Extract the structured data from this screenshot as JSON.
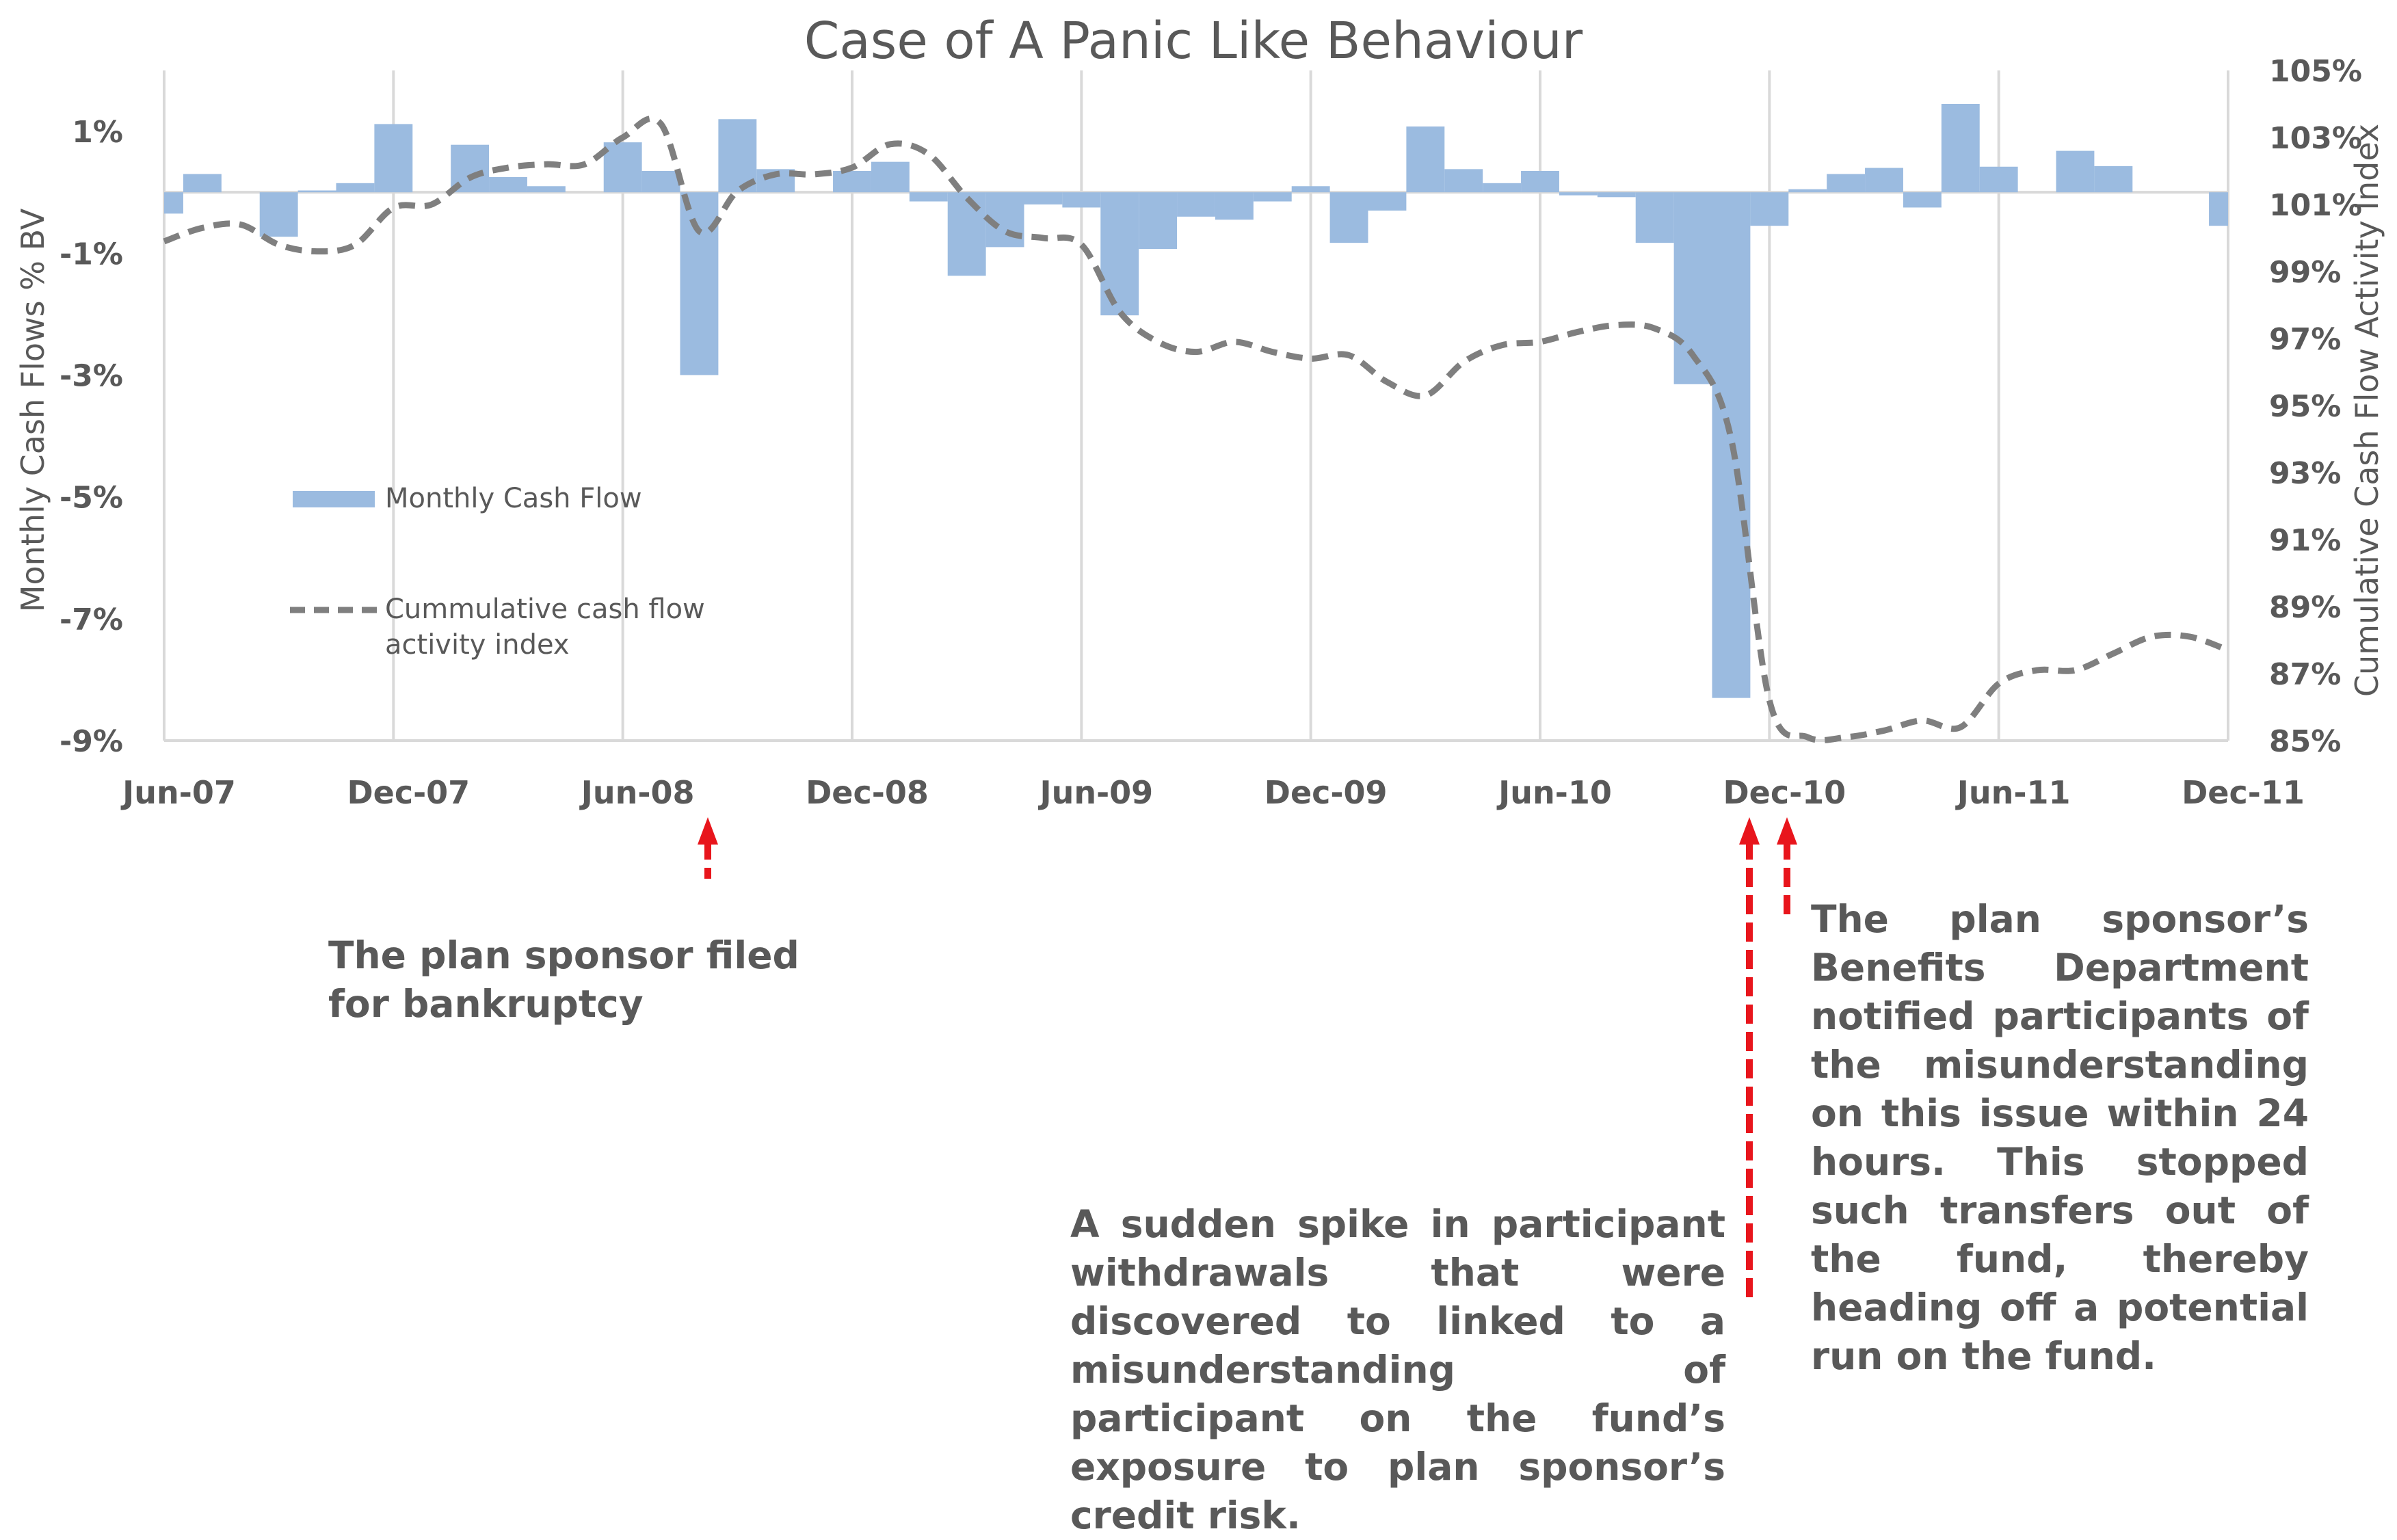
{
  "chart_data": {
    "type": "bar",
    "title": "Case of A Panic Like Behaviour",
    "ylabel": "Monthly Cash Flows % BV",
    "y2label": "Cumulative Cash Flow Activity Index",
    "ylim": [
      -9,
      2
    ],
    "y2lim": [
      85,
      105
    ],
    "yticks": [
      "1%",
      "-1%",
      "-3%",
      "-5%",
      "-7%",
      "-9%"
    ],
    "y2ticks": [
      "105%",
      "103%",
      "101%",
      "99%",
      "97%",
      "95%",
      "93%",
      "91%",
      "89%",
      "87%",
      "85%"
    ],
    "xticks": [
      "Jun-07",
      "Dec-07",
      "Jun-08",
      "Dec-08",
      "Jun-09",
      "Dec-09",
      "Jun-10",
      "Dec-10",
      "Jun-11",
      "Dec-11"
    ],
    "grid": "vertical",
    "legend_position": "left-middle",
    "categories": [
      "Jun-07",
      "Jul-07",
      "Aug-07",
      "Sep-07",
      "Oct-07",
      "Nov-07",
      "Dec-07",
      "Jan-08",
      "Feb-08",
      "Mar-08",
      "Apr-08",
      "May-08",
      "Jun-08",
      "Jul-08",
      "Aug-08",
      "Sep-08",
      "Oct-08",
      "Nov-08",
      "Dec-08",
      "Jan-09",
      "Feb-09",
      "Mar-09",
      "Apr-09",
      "May-09",
      "Jun-09",
      "Jul-09",
      "Aug-09",
      "Sep-09",
      "Oct-09",
      "Nov-09",
      "Dec-09",
      "Jan-10",
      "Feb-10",
      "Mar-10",
      "Apr-10",
      "May-10",
      "Jun-10",
      "Jul-10",
      "Aug-10",
      "Sep-10",
      "Oct-10",
      "Nov-10",
      "Dec-10",
      "Jan-11",
      "Feb-11",
      "Mar-11",
      "Apr-11",
      "May-11",
      "Jun-11",
      "Jul-11",
      "Aug-11",
      "Sep-11",
      "Oct-11",
      "Nov-11",
      "Dec-11"
    ],
    "series": [
      {
        "name": "Monthly Cash Flow",
        "type": "bar",
        "axis": "left",
        "color": "#9bbbe0",
        "values": [
          -0.35,
          0.3,
          0.0,
          -0.73,
          0.03,
          0.15,
          1.12,
          0.0,
          0.78,
          0.25,
          0.1,
          0.0,
          0.82,
          0.35,
          -3.0,
          1.2,
          0.38,
          0.0,
          0.35,
          0.5,
          -0.15,
          -1.37,
          -0.9,
          -0.2,
          -0.25,
          -2.02,
          -0.93,
          -0.4,
          -0.45,
          -0.15,
          0.1,
          -0.83,
          -0.3,
          1.08,
          0.38,
          0.15,
          0.35,
          -0.05,
          -0.08,
          -0.83,
          -3.15,
          -8.3,
          -0.55,
          0.05,
          0.3,
          0.4,
          -0.25,
          1.45,
          0.42,
          0.0,
          0.68,
          0.43,
          0.0,
          0.0,
          -0.55
        ]
      },
      {
        "name": "Cummulative cash flow activity index",
        "type": "line",
        "axis": "right",
        "style": "dashed",
        "color": "#7f7f7f",
        "values": [
          99.9,
          100.3,
          100.4,
          99.8,
          99.6,
          99.8,
          100.9,
          101.0,
          101.8,
          102.1,
          102.2,
          102.2,
          103.0,
          103.4,
          100.2,
          101.4,
          101.9,
          101.9,
          102.1,
          102.8,
          102.5,
          101.2,
          100.2,
          100.0,
          99.8,
          97.8,
          96.9,
          96.6,
          96.9,
          96.6,
          96.4,
          96.5,
          95.7,
          95.3,
          96.3,
          96.8,
          96.9,
          97.2,
          97.4,
          97.3,
          96.5,
          94.0,
          86.2,
          85.1,
          85.1,
          85.3,
          85.6,
          85.4,
          86.7,
          87.1,
          87.1,
          87.6,
          88.1,
          88.1,
          87.7
        ]
      }
    ]
  },
  "annotations": {
    "bankruptcy": "The plan sponsor filed for bankruptcy",
    "spike": "A sudden spike in participant withdrawals that were discovered to linked to a misunderstanding of participant on the fund’s exposure to plan sponsor’s credit risk.",
    "notification": "The plan sponsor’s Benefits Department notified participants of the misunderstanding on this issue within 24 hours. This stopped such transfers out of the fund, thereby heading off a potential run on the fund.",
    "arrow_color": "#e8151c"
  }
}
